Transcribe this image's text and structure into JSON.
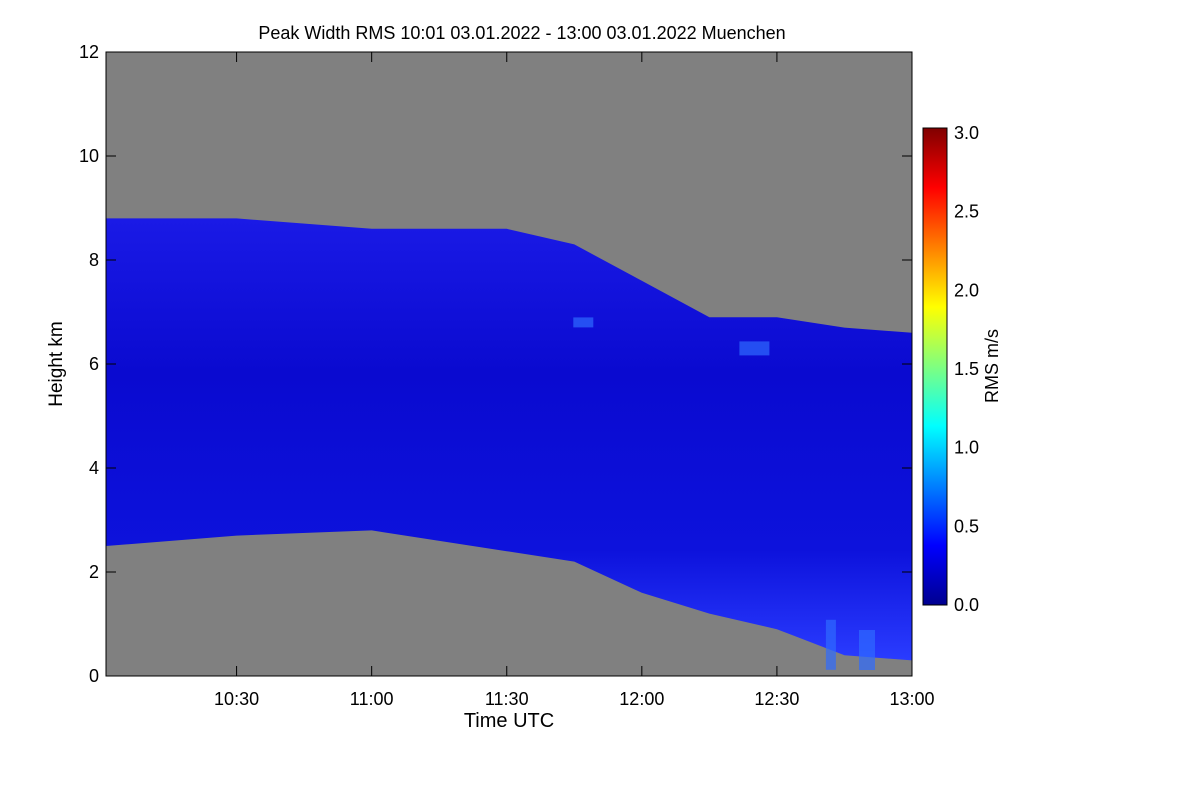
{
  "chart_data": {
    "type": "heatmap",
    "title": "Peak Width RMS   10:01 03.01.2022 - 13:00 03.01.2022 Muenchen",
    "xlabel": "Time UTC",
    "ylabel": "Height km",
    "x_range": [
      "10:01",
      "13:00"
    ],
    "ylim": [
      0,
      12
    ],
    "x_ticks": [
      "10:30",
      "11:00",
      "11:30",
      "12:00",
      "12:30",
      "13:00"
    ],
    "y_ticks": [
      "0",
      "2",
      "4",
      "6",
      "8",
      "10",
      "12"
    ],
    "colorbar": {
      "label": "RMS m/s",
      "range": [
        0,
        3.0
      ],
      "ticks": [
        "0.0",
        "0.5",
        "1.0",
        "1.5",
        "2.0",
        "2.5",
        "3.0"
      ],
      "colormap": "jet"
    },
    "background_color": "#808080",
    "cloud_layer": {
      "description_time": [
        "10:01",
        "10:30",
        "11:00",
        "11:30",
        "11:45",
        "12:00",
        "12:15",
        "12:30",
        "12:45",
        "13:00"
      ],
      "top_height_km": [
        8.8,
        8.8,
        8.6,
        8.6,
        8.3,
        7.6,
        6.9,
        6.9,
        6.7,
        6.6
      ],
      "base_height_km": [
        2.5,
        2.7,
        2.8,
        2.4,
        2.2,
        1.6,
        1.2,
        0.9,
        0.4,
        0.3
      ],
      "typical_rms_m_per_s": 0.3
    }
  }
}
